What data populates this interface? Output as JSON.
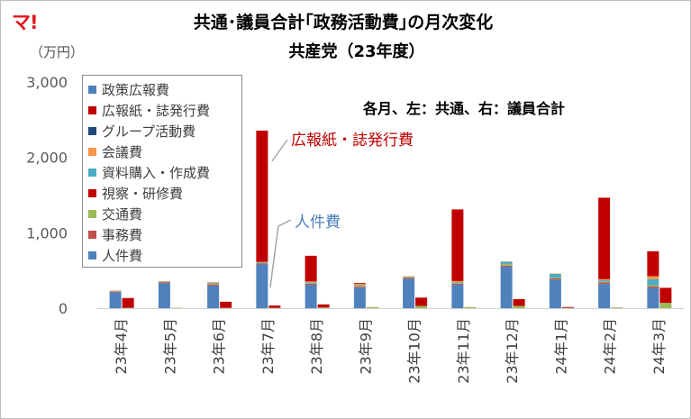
{
  "logo": "マ!",
  "chart_data": {
    "type": "bar",
    "stacked": true,
    "title": "共通･議員合計｢政務活動費｣の月次変化",
    "subtitle": "共産党（23年度）",
    "ylabel": "（万円）",
    "note": "各月、左：共通、右：議員合計",
    "ylim": [
      0,
      3000
    ],
    "yticks": [
      "0",
      "1,000",
      "2,000",
      "3,000"
    ],
    "grid": false,
    "legend_position": "top-left",
    "categories": [
      "23年4月",
      "23年5月",
      "23年6月",
      "23年7月",
      "23年8月",
      "23年9月",
      "23年10月",
      "23年11月",
      "23年12月",
      "24年1月",
      "24年2月",
      "24年3月"
    ],
    "bars_per_category": [
      "共通",
      "議員合計"
    ],
    "series": [
      {
        "name": "人件費",
        "color": "#4f81bd",
        "common": [
          210,
          330,
          300,
          580,
          310,
          270,
          390,
          310,
          550,
          380,
          320,
          270
        ],
        "member": [
          0,
          0,
          0,
          0,
          0,
          0,
          0,
          0,
          0,
          0,
          0,
          0
        ]
      },
      {
        "name": "事務費",
        "color": "#c0504d",
        "common": [
          10,
          15,
          15,
          15,
          15,
          15,
          15,
          15,
          15,
          15,
          20,
          20
        ],
        "member": [
          0,
          0,
          0,
          0,
          0,
          0,
          0,
          0,
          0,
          0,
          0,
          0
        ]
      },
      {
        "name": "交通費",
        "color": "#9bbb59",
        "common": [
          5,
          5,
          10,
          5,
          10,
          10,
          10,
          10,
          20,
          10,
          10,
          15
        ],
        "member": [
          5,
          5,
          5,
          5,
          10,
          15,
          30,
          15,
          30,
          5,
          10,
          70
        ]
      },
      {
        "name": "視察・研修費",
        "color": "#c00000",
        "common": [
          0,
          0,
          0,
          0,
          0,
          0,
          0,
          0,
          0,
          0,
          0,
          0
        ],
        "member": [
          0,
          0,
          0,
          0,
          0,
          0,
          0,
          0,
          0,
          0,
          0,
          0
        ]
      },
      {
        "name": "資料購入・作成費",
        "color": "#4bacc6",
        "common": [
          5,
          5,
          10,
          10,
          10,
          10,
          5,
          10,
          30,
          50,
          20,
          80
        ],
        "member": [
          0,
          0,
          0,
          0,
          0,
          0,
          0,
          0,
          0,
          0,
          0,
          0
        ]
      },
      {
        "name": "会議費",
        "color": "#f79646",
        "common": [
          5,
          5,
          10,
          5,
          10,
          20,
          5,
          15,
          5,
          5,
          15,
          40
        ],
        "member": [
          0,
          0,
          0,
          0,
          0,
          0,
          0,
          0,
          0,
          0,
          0,
          0
        ]
      },
      {
        "name": "グループ活動費",
        "color": "#1f497d",
        "common": [
          0,
          0,
          0,
          0,
          0,
          0,
          0,
          0,
          0,
          0,
          0,
          0
        ],
        "member": [
          0,
          0,
          0,
          0,
          0,
          0,
          0,
          0,
          0,
          0,
          0,
          0
        ]
      },
      {
        "name": "広報紙・誌発行費",
        "color": "#c00000",
        "common": [
          0,
          0,
          0,
          1740,
          340,
          10,
          0,
          950,
          0,
          0,
          1080,
          330
        ],
        "member": [
          130,
          0,
          80,
          30,
          40,
          0,
          110,
          0,
          90,
          10,
          0,
          200
        ]
      },
      {
        "name": "政策広報費",
        "color": "#4f81bd",
        "common": [
          0,
          0,
          0,
          0,
          0,
          0,
          0,
          0,
          0,
          0,
          0,
          0
        ],
        "member": [
          0,
          0,
          0,
          0,
          0,
          0,
          0,
          0,
          0,
          0,
          0,
          0
        ]
      }
    ],
    "annotations": [
      {
        "text": "広報紙・誌発行費",
        "color": "#c00000"
      },
      {
        "text": "人件費",
        "color": "#4f81bd"
      }
    ]
  }
}
